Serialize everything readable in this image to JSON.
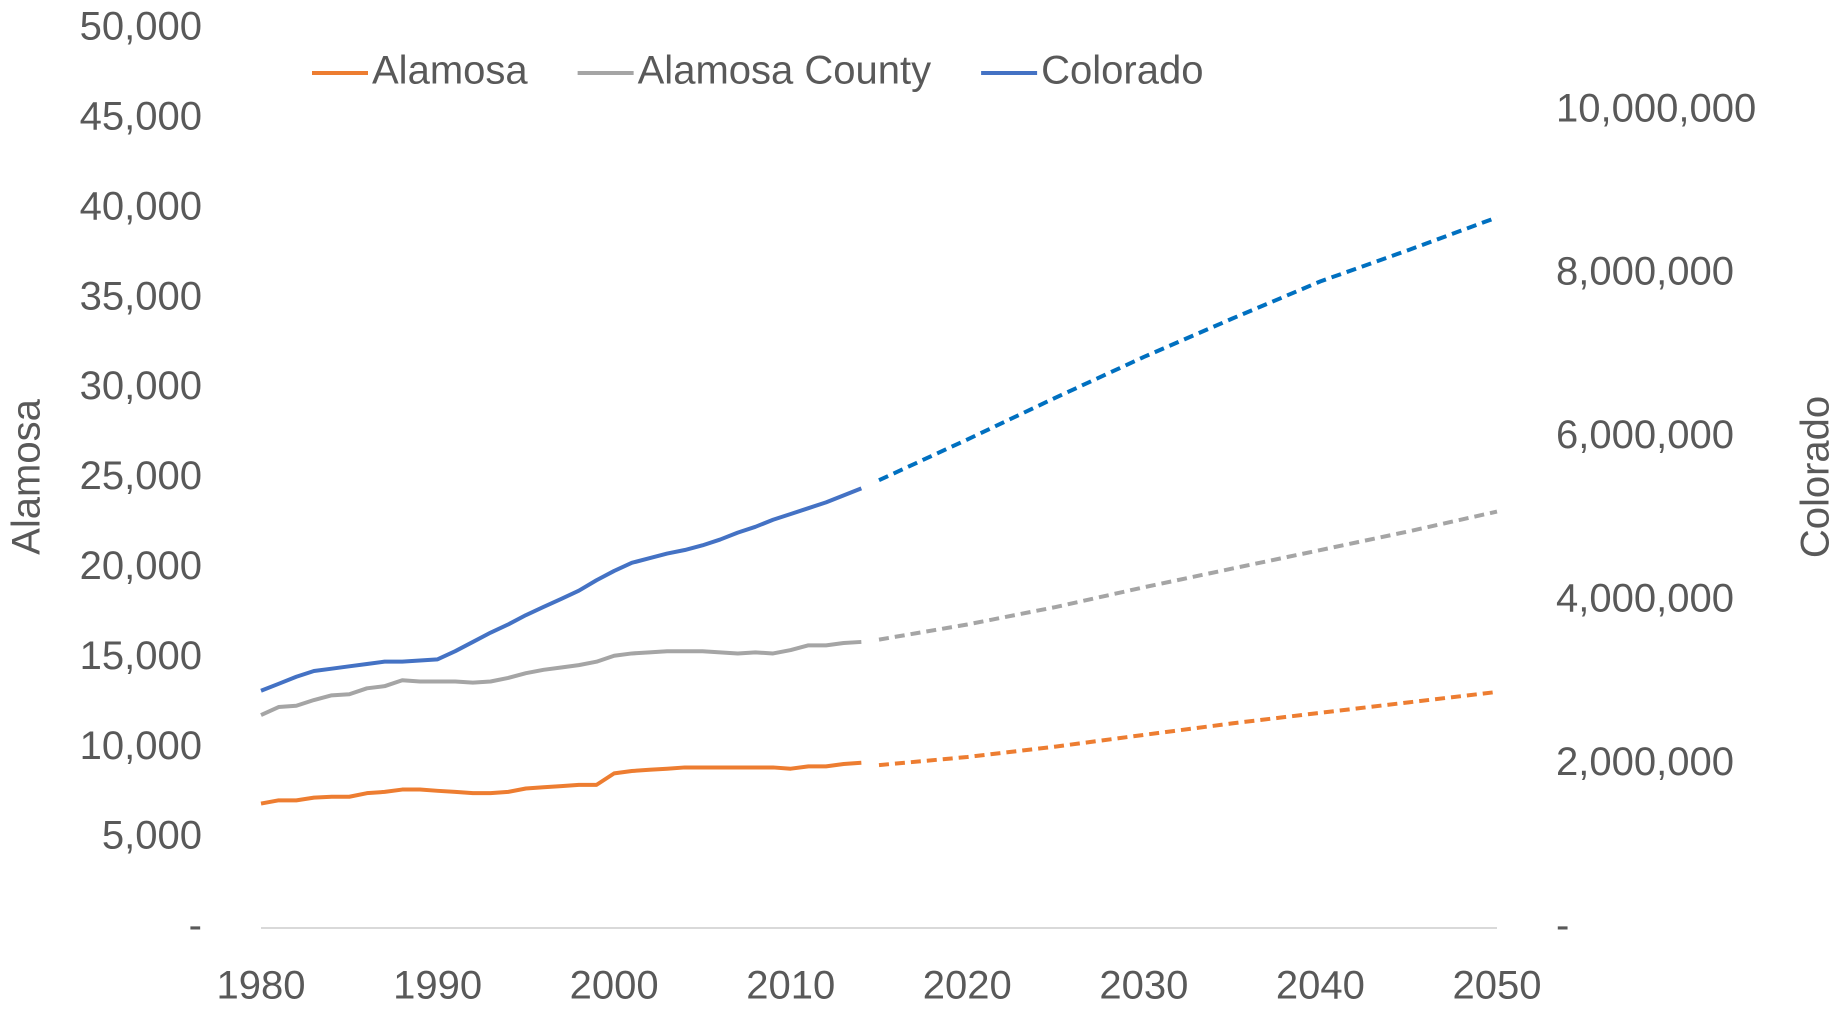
{
  "chart_data": {
    "type": "line",
    "y_axis_label": "Alamosa",
    "y2_axis_label": "Colorado",
    "x": [
      1980,
      1981,
      1982,
      1983,
      1984,
      1985,
      1986,
      1987,
      1988,
      1989,
      1990,
      1991,
      1992,
      1993,
      1994,
      1995,
      1996,
      1997,
      1998,
      1999,
      2000,
      2001,
      2002,
      2003,
      2004,
      2005,
      2006,
      2007,
      2008,
      2009,
      2010,
      2011,
      2012,
      2013,
      2014,
      2015,
      2020,
      2025,
      2030,
      2035,
      2040,
      2045,
      2050
    ],
    "dashed_from": 2015,
    "series": [
      {
        "name": "Alamosa",
        "color": "#ed7d31",
        "dashed_color": "#ed7d31",
        "values": [
          6920,
          7100,
          7100,
          7250,
          7300,
          7300,
          7500,
          7570,
          7700,
          7700,
          7630,
          7570,
          7500,
          7500,
          7570,
          7760,
          7830,
          7890,
          7960,
          7960,
          8600,
          8730,
          8800,
          8860,
          8930,
          8930,
          8930,
          8930,
          8930,
          8930,
          8860,
          8990,
          8990,
          9120,
          9190,
          9060,
          9510,
          10090,
          10740,
          11380,
          11970,
          12550,
          13130
        ]
      },
      {
        "name": "Alamosa County",
        "color": "#a5a5a5",
        "dashed_color": "#a5a5a5",
        "values": [
          11840,
          12290,
          12360,
          12680,
          12940,
          13000,
          13330,
          13450,
          13780,
          13710,
          13710,
          13710,
          13650,
          13710,
          13910,
          14170,
          14360,
          14490,
          14620,
          14810,
          15140,
          15270,
          15330,
          15390,
          15390,
          15390,
          15330,
          15270,
          15330,
          15270,
          15460,
          15720,
          15720,
          15850,
          15910,
          16040,
          16880,
          17850,
          18950,
          19990,
          21020,
          22060,
          23160
        ]
      },
      {
        "name": "Colorado",
        "color": "#4472c4",
        "dashed_color": "#0070c0",
        "axis": "y2",
        "values": [
          2903000,
          2988000,
          3074000,
          3145000,
          3173000,
          3202000,
          3230000,
          3259000,
          3259000,
          3273000,
          3287000,
          3387000,
          3500000,
          3614000,
          3714000,
          3828000,
          3928000,
          4027000,
          4127000,
          4255000,
          4369000,
          4468000,
          4525000,
          4582000,
          4625000,
          4682000,
          4753000,
          4838000,
          4909000,
          4995000,
          5066000,
          5137000,
          5208000,
          5294000,
          5379000,
          5479000,
          5977000,
          6489000,
          6987000,
          7456000,
          7912000,
          8296000,
          8695000
        ]
      }
    ],
    "xlim": [
      1980,
      2050
    ],
    "xticks": [
      1980,
      1990,
      2000,
      2010,
      2020,
      2030,
      2040,
      2050
    ],
    "ylim": [
      0,
      50000
    ],
    "yticks": [
      {
        "value": 0,
        "label": "-"
      },
      {
        "value": 5000,
        "label": "5,000"
      },
      {
        "value": 10000,
        "label": "10,000"
      },
      {
        "value": 15000,
        "label": "15,000"
      },
      {
        "value": 20000,
        "label": "20,000"
      },
      {
        "value": 25000,
        "label": "25,000"
      },
      {
        "value": 30000,
        "label": "30,000"
      },
      {
        "value": 35000,
        "label": "35,000"
      },
      {
        "value": 40000,
        "label": "40,000"
      },
      {
        "value": 45000,
        "label": "45,000"
      },
      {
        "value": 50000,
        "label": "50,000"
      }
    ],
    "y2lim": [
      0,
      11000000
    ],
    "y2ticks": [
      {
        "value": 0,
        "label": "-"
      },
      {
        "value": 2000000,
        "label": "2,000,000"
      },
      {
        "value": 4000000,
        "label": "4,000,000"
      },
      {
        "value": 6000000,
        "label": "6,000,000"
      },
      {
        "value": 8000000,
        "label": "8,000,000"
      },
      {
        "value": 10000000,
        "label": "10,000,000"
      }
    ],
    "grid": false,
    "legend": "top"
  }
}
